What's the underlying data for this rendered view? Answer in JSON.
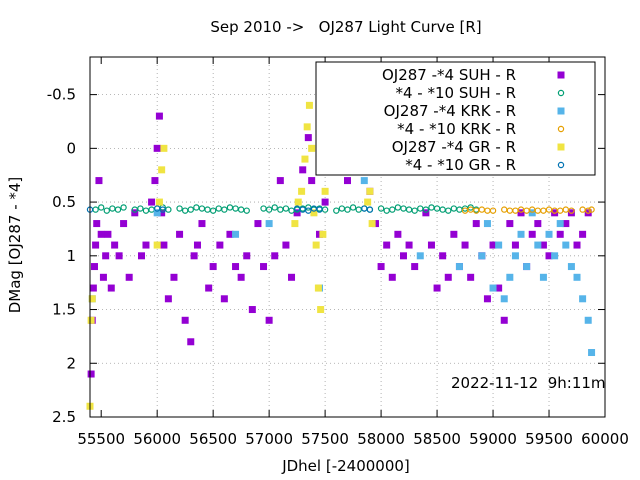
{
  "chart_data": {
    "type": "scatter",
    "title": "Sep 2010 ->   OJ287 Light Curve [R]",
    "xlabel": "JDhel [-2400000]",
    "ylabel": "DMag [OJ287 - *4]",
    "xlim": [
      55400,
      60000
    ],
    "ylim": [
      2.5,
      -0.85
    ],
    "y_inverted": true,
    "xticks": [
      55500,
      56000,
      56500,
      57000,
      57500,
      58000,
      58500,
      59000,
      59500,
      60000
    ],
    "yticks": [
      -0.5,
      0,
      0.5,
      1,
      1.5,
      2,
      2.5
    ],
    "ytick_labels": [
      "-0.5",
      "0",
      "0.5",
      "1",
      "1.5",
      "2",
      "2.5"
    ],
    "grid": true,
    "legend_position": "top-right",
    "annotation": "2022-11-12  9h:11m",
    "series": [
      {
        "name": "OJ287 -*4 SUH - R",
        "marker": "square",
        "color": "#9400d3",
        "x": [
          55410,
          55420,
          55430,
          55440,
          55450,
          55460,
          55480,
          55500,
          55520,
          55540,
          55560,
          55590,
          55620,
          55660,
          55700,
          55750,
          55800,
          55860,
          55900,
          55950,
          55980,
          56000,
          56020,
          56040,
          56060,
          56100,
          56150,
          56200,
          56250,
          56300,
          56330,
          56360,
          56400,
          56460,
          56500,
          56560,
          56600,
          56650,
          56700,
          56750,
          56800,
          56850,
          56900,
          56950,
          57000,
          57050,
          57100,
          57150,
          57200,
          57250,
          57300,
          57350,
          57380,
          57450,
          57500,
          57550,
          57600,
          57650,
          57700,
          57750,
          57800,
          57850,
          57900,
          57950,
          58000,
          58050,
          58100,
          58150,
          58200,
          58250,
          58300,
          58400,
          58450,
          58500,
          58550,
          58600,
          58650,
          58700,
          58750,
          58800,
          58850,
          58900,
          58950,
          59000,
          59050,
          59100,
          59150,
          59200,
          59250,
          59300,
          59350,
          59400,
          59450,
          59500,
          59550,
          59600,
          59650,
          59700,
          59750,
          59800,
          59850
        ],
        "y": [
          2.1,
          1.6,
          1.3,
          1.1,
          0.9,
          0.7,
          0.3,
          0.8,
          1.2,
          1.0,
          0.8,
          1.3,
          0.9,
          1.0,
          0.7,
          1.2,
          0.6,
          1.0,
          0.9,
          0.5,
          0.3,
          0.0,
          -0.3,
          0.6,
          0.9,
          1.4,
          1.2,
          0.8,
          1.6,
          1.8,
          1.0,
          0.9,
          0.7,
          1.3,
          1.1,
          0.9,
          1.4,
          0.8,
          1.1,
          1.2,
          1.0,
          1.5,
          0.7,
          1.1,
          1.6,
          1.0,
          0.3,
          0.9,
          1.2,
          0.6,
          0.2,
          -0.1,
          0.3,
          0.8,
          0.5,
          -0.3,
          -0.6,
          0.0,
          0.3,
          0.2,
          0.1,
          0.0,
          0.4,
          0.7,
          1.1,
          0.9,
          1.2,
          0.8,
          1.0,
          0.9,
          1.1,
          0.6,
          0.9,
          1.3,
          1.0,
          1.2,
          0.8,
          1.1,
          0.9,
          1.2,
          0.7,
          1.0,
          1.4,
          0.9,
          1.3,
          1.6,
          0.7,
          0.9,
          0.6,
          1.1,
          0.8,
          0.7,
          0.9,
          1.0,
          0.6,
          0.8,
          0.7,
          0.6,
          0.9,
          0.8,
          0.6
        ]
      },
      {
        "name": "*4 - *10 SUH - R",
        "marker": "circle",
        "color": "#009e73",
        "x": [
          55450,
          55500,
          55550,
          55600,
          55650,
          55700,
          55800,
          55850,
          55900,
          55950,
          56000,
          56050,
          56100,
          56200,
          56250,
          56300,
          56350,
          56400,
          56450,
          56500,
          56550,
          56600,
          56650,
          56700,
          56750,
          56800,
          56950,
          57000,
          57050,
          57100,
          57150,
          57200,
          57250,
          57300,
          57350,
          57400,
          57450,
          57500,
          57600,
          57650,
          57700,
          57750,
          57800,
          57850,
          57900,
          58000,
          58050,
          58100,
          58150,
          58200,
          58250,
          58300,
          58350,
          58400,
          58450,
          58500,
          58550,
          58600,
          58650,
          58700,
          58750,
          58800,
          58850
        ],
        "y": [
          0.57,
          0.55,
          0.58,
          0.56,
          0.57,
          0.55,
          0.57,
          0.56,
          0.58,
          0.57,
          0.56,
          0.55,
          0.57,
          0.56,
          0.58,
          0.57,
          0.55,
          0.56,
          0.57,
          0.58,
          0.56,
          0.57,
          0.55,
          0.56,
          0.57,
          0.58,
          0.56,
          0.57,
          0.55,
          0.57,
          0.56,
          0.58,
          0.57,
          0.56,
          0.55,
          0.57,
          0.56,
          0.57,
          0.58,
          0.56,
          0.57,
          0.55,
          0.57,
          0.56,
          0.57,
          0.56,
          0.58,
          0.57,
          0.55,
          0.56,
          0.57,
          0.58,
          0.56,
          0.57,
          0.55,
          0.56,
          0.57,
          0.58,
          0.56,
          0.57,
          0.56,
          0.55,
          0.57
        ]
      },
      {
        "name": "OJ287 -*4 KRK - R",
        "marker": "square",
        "color": "#56b4e9",
        "x": [
          55420,
          56000,
          56700,
          57000,
          57450,
          57850,
          58350,
          58700,
          58900,
          58950,
          59000,
          59050,
          59100,
          59150,
          59200,
          59250,
          59300,
          59350,
          59400,
          59450,
          59500,
          59550,
          59600,
          59650,
          59700,
          59750,
          59800,
          59850,
          59880
        ],
        "y": [
          1.4,
          0.6,
          0.8,
          0.7,
          1.3,
          0.3,
          1.0,
          1.1,
          1.0,
          0.7,
          1.3,
          0.9,
          1.4,
          1.2,
          1.0,
          0.8,
          1.1,
          0.6,
          0.9,
          1.2,
          0.8,
          1.0,
          0.7,
          0.9,
          1.1,
          1.2,
          1.4,
          1.6,
          1.9
        ]
      },
      {
        "name": "*4 - *10 KRK - R",
        "marker": "circle",
        "color": "#e69f00",
        "x": [
          58750,
          58800,
          58850,
          58900,
          58950,
          59000,
          59100,
          59150,
          59200,
          59250,
          59300,
          59350,
          59400,
          59450,
          59500,
          59550,
          59600,
          59650,
          59700,
          59800,
          59850,
          59880
        ],
        "y": [
          0.58,
          0.57,
          0.58,
          0.57,
          0.58,
          0.58,
          0.57,
          0.58,
          0.58,
          0.57,
          0.58,
          0.57,
          0.58,
          0.58,
          0.57,
          0.58,
          0.58,
          0.57,
          0.58,
          0.57,
          0.58,
          0.57
        ]
      },
      {
        "name": "OJ287 -*4 GR - R",
        "marker": "square",
        "color": "#f0e442",
        "x": [
          55400,
          55410,
          55420,
          56000,
          56020,
          56040,
          56060,
          57230,
          57260,
          57290,
          57320,
          57340,
          57360,
          57380,
          57400,
          57420,
          57440,
          57460,
          57480,
          57500,
          57810,
          57840,
          57860,
          57880,
          57900,
          57920
        ],
        "y": [
          2.4,
          1.6,
          1.4,
          0.9,
          0.5,
          0.2,
          0.0,
          0.7,
          0.5,
          0.4,
          0.1,
          -0.2,
          -0.4,
          0.0,
          0.6,
          0.9,
          1.3,
          1.5,
          0.8,
          0.4,
          0.0,
          -0.1,
          0.2,
          0.5,
          0.4,
          0.7
        ]
      },
      {
        "name": "*4 - *10 GR - R",
        "marker": "circle",
        "color": "#0072b2",
        "x": [
          55400,
          56000,
          56050,
          57250,
          57300,
          57350,
          57400,
          57450,
          57850,
          57900
        ],
        "y": [
          0.57,
          0.56,
          0.57,
          0.56,
          0.57,
          0.58,
          0.56,
          0.57,
          0.56,
          0.57
        ]
      }
    ]
  }
}
